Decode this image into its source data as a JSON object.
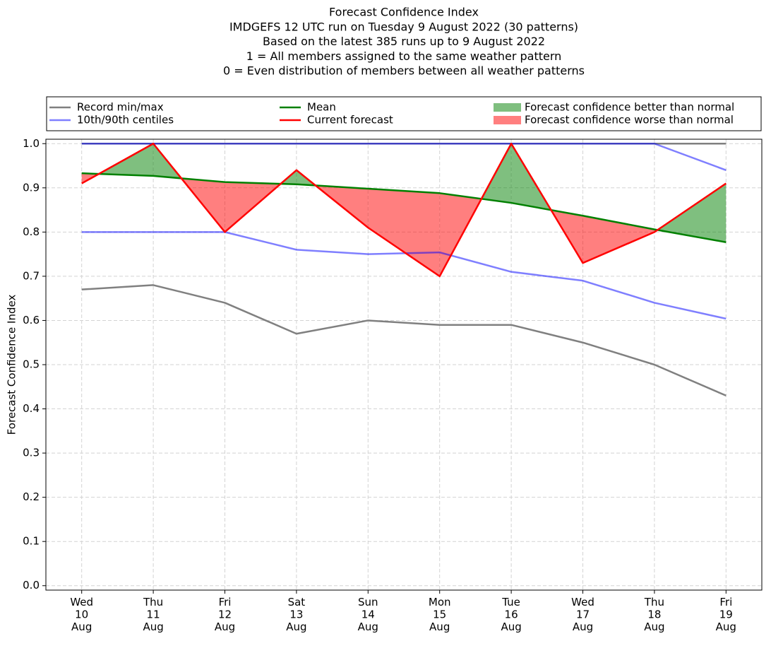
{
  "chart_data": {
    "type": "line",
    "title": [
      "Forecast Confidence Index",
      "IMDGEFS 12 UTC run on Tuesday 9 August 2022 (30 patterns)",
      "Based on the latest 385 runs up to 9 August 2022",
      "1 = All members assigned to the same weather pattern",
      "0 = Even distribution of members between all weather patterns"
    ],
    "y_label": "Forecast Confidence Index",
    "categories": [
      "Wed\n10\nAug",
      "Thu\n11\nAug",
      "Fri\n12\nAug",
      "Sat\n13\nAug",
      "Sun\n14\nAug",
      "Mon\n15\nAug",
      "Tue\n16\nAug",
      "Wed\n17\nAug",
      "Thu\n18\nAug",
      "Fri\n19\nAug"
    ],
    "series": [
      {
        "name": "Record min/max",
        "color": "#808080",
        "alpha": 1,
        "low": [
          0.67,
          0.68,
          0.64,
          0.57,
          0.6,
          0.59,
          0.59,
          0.55,
          0.5,
          0.43
        ],
        "high": [
          1,
          1,
          1,
          1,
          1,
          1,
          1,
          1,
          1,
          1
        ]
      },
      {
        "name": "10th/90th centiles",
        "color": "#0000ff",
        "alpha": 0.5,
        "low": [
          0.8,
          0.8,
          0.8,
          0.76,
          0.75,
          0.754,
          0.71,
          0.69,
          0.64,
          0.604
        ],
        "high": [
          1,
          1,
          1,
          1,
          1,
          1,
          1,
          1,
          1,
          0.94
        ]
      },
      {
        "name": "Mean",
        "color": "#008000",
        "alpha": 1,
        "values": [
          0.933,
          0.927,
          0.913,
          0.908,
          0.898,
          0.888,
          0.866,
          0.837,
          0.806,
          0.777
        ]
      },
      {
        "name": "Current forecast",
        "color": "#ff0000",
        "alpha": 1,
        "values": [
          0.91,
          1,
          0.8,
          0.94,
          0.81,
          0.7,
          1,
          0.73,
          0.8,
          0.91
        ]
      }
    ],
    "fills": [
      {
        "name": "Forecast confidence better than normal",
        "color": "#008000",
        "alpha": 0.5
      },
      {
        "name": "Forecast confidence worse than normal",
        "color": "#ff0000",
        "alpha": 0.5
      }
    ],
    "ylim": [
      -0.01,
      1.01
    ],
    "yticks": [
      {
        "value": 0,
        "label": "0.0"
      },
      0.1,
      0.2,
      0.3,
      0.4,
      0.5,
      0.6,
      0.7,
      0.8,
      0.9,
      {
        "value": 1,
        "label": "1.0"
      }
    ],
    "grid": true
  }
}
